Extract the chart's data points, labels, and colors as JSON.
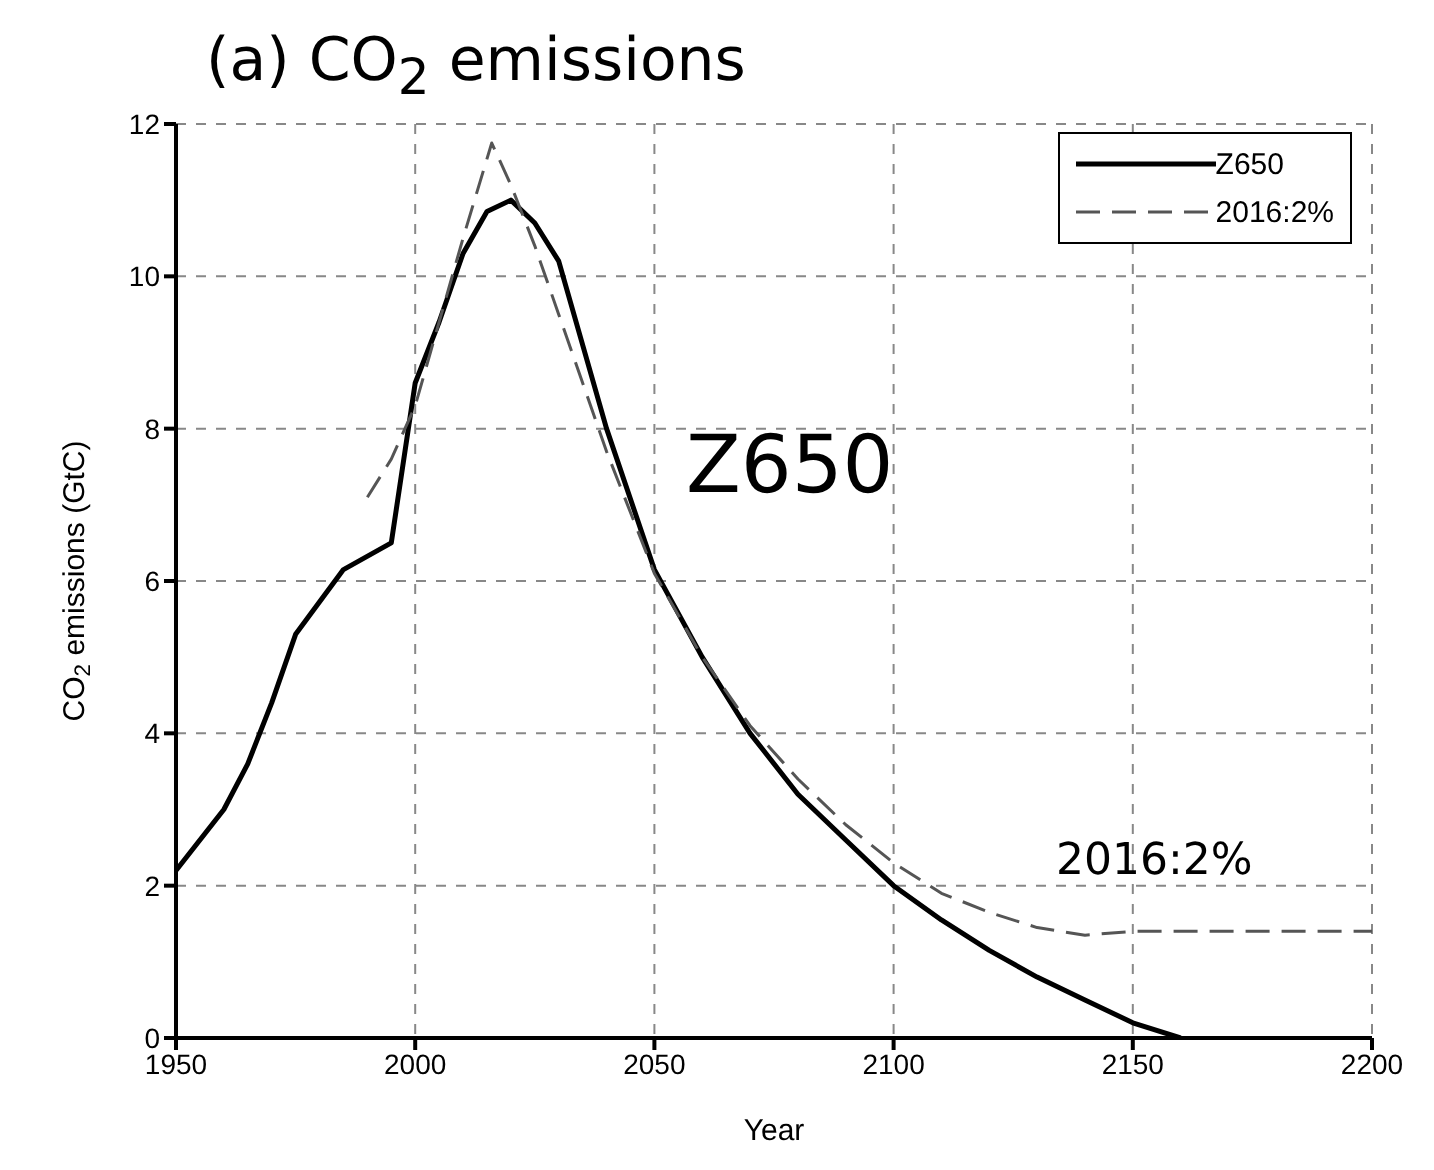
{
  "chart_data": {
    "type": "line",
    "title": "(a) CO$_{2}$ emissions",
    "xlabel": "Year",
    "ylabel": "CO$_{2}$ emissions (GtC)",
    "series": [
      {
        "name": "Z650",
        "color": "#000000",
        "line_style": "solid",
        "x": [
          1950,
          1960,
          1965,
          1970,
          1975,
          1985,
          1995,
          2000,
          2005,
          2010,
          2015,
          2020,
          2025,
          2030,
          2040,
          2050,
          2060,
          2070,
          2080,
          2090,
          2100,
          2110,
          2120,
          2130,
          2140,
          2150,
          2160
        ],
        "values": [
          2.2,
          3.0,
          3.6,
          4.4,
          5.3,
          6.15,
          6.5,
          8.6,
          9.4,
          10.3,
          10.85,
          11.0,
          10.7,
          10.2,
          8.0,
          6.15,
          5.0,
          4.0,
          3.2,
          2.6,
          2.0,
          1.55,
          1.15,
          0.8,
          0.5,
          0.2,
          0
        ]
      },
      {
        "name": "2016:2%",
        "color": "#555555",
        "line_style": "dashed",
        "x": [
          1990,
          1995,
          2000,
          2005,
          2010,
          2016,
          2020,
          2025,
          2030,
          2040,
          2050,
          2060,
          2070,
          2080,
          2090,
          2100,
          2110,
          2120,
          2130,
          2140,
          2150,
          2200
        ],
        "values": [
          7.1,
          7.6,
          8.3,
          9.4,
          10.5,
          11.75,
          11.2,
          10.4,
          9.5,
          7.7,
          6.1,
          5.0,
          4.1,
          3.4,
          2.8,
          2.3,
          1.9,
          1.65,
          1.45,
          1.35,
          1.4,
          1.4
        ]
      }
    ],
    "annotations": [
      "Z650",
      "2016:2%"
    ],
    "xlim": [
      1950,
      2200
    ],
    "xticks": [
      1950,
      2000,
      2050,
      2100,
      2150,
      2200
    ],
    "ylim": [
      0,
      12
    ],
    "yticks": [
      0,
      2,
      4,
      6,
      8,
      10,
      12
    ],
    "grid": true,
    "legend": "top right",
    "marker": "none"
  }
}
